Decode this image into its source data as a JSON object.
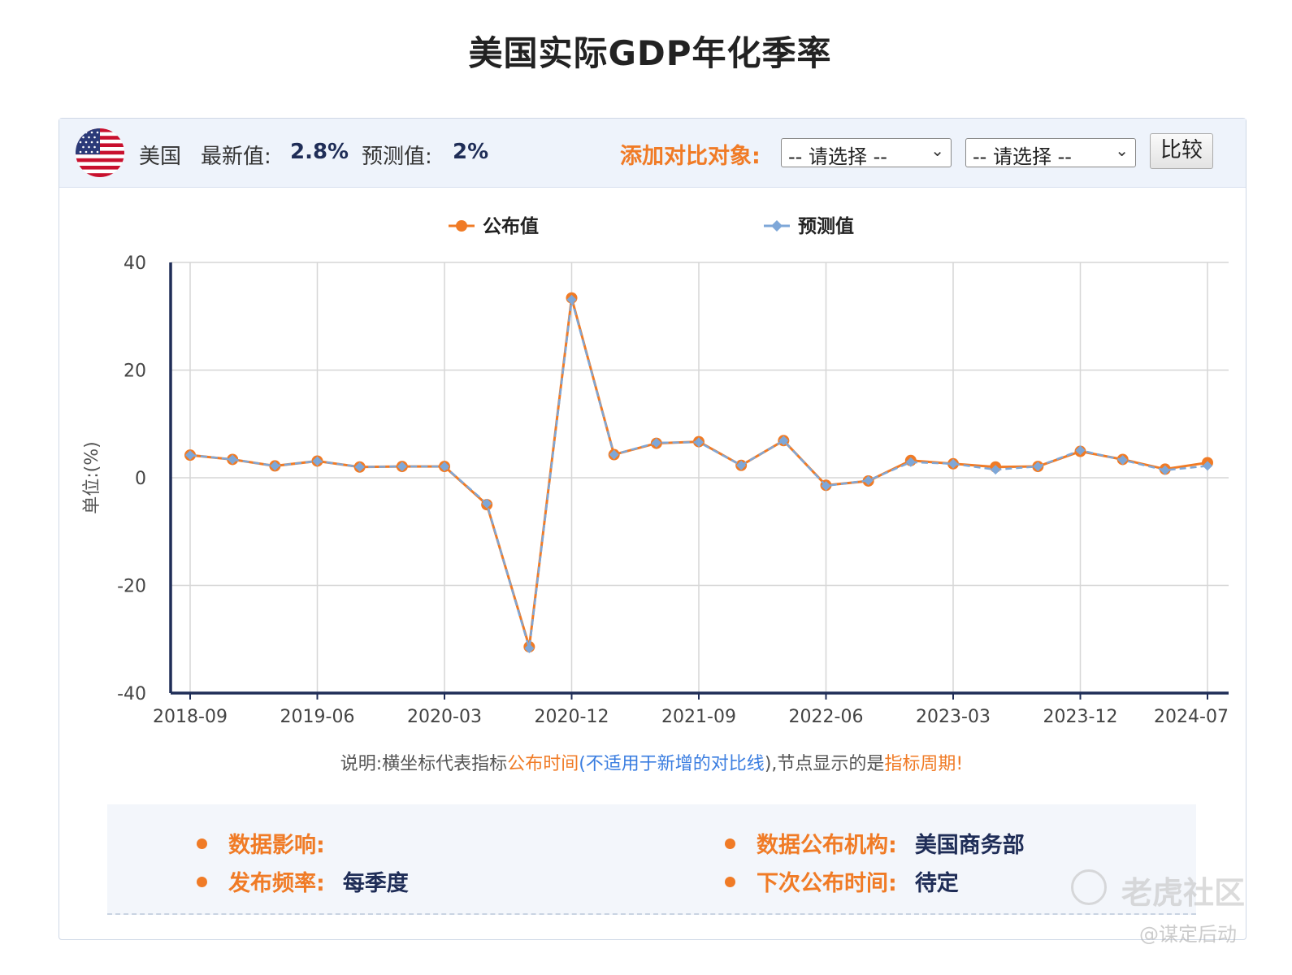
{
  "page": {
    "title": "美国实际GDP年化季率"
  },
  "header": {
    "country": "美国",
    "latest_label": "最新值:",
    "latest_value": "2.8%",
    "forecast_label": "预测值:",
    "forecast_value": "2%",
    "compare_label": "添加对比对象:",
    "select1": "-- 请选择 --",
    "select2": "-- 请选择 --",
    "compare_button": "比较"
  },
  "colors": {
    "published": "#f07b26",
    "forecast": "#7ea7d8",
    "axis": "#1f2d57",
    "grid": "#d6d6d6"
  },
  "chart_data": {
    "type": "line",
    "ylabel": "单位:(%)",
    "ylim": [
      -40,
      40
    ],
    "yticks": [
      40,
      20,
      0,
      -20,
      -40
    ],
    "grid": true,
    "legend_position": "top-center",
    "x_tick_labels": [
      "2018-09",
      "2019-06",
      "2020-03",
      "2020-12",
      "2021-09",
      "2022-06",
      "2023-03",
      "2023-12",
      "2024-07"
    ],
    "series": [
      {
        "name": "公布值",
        "values": [
          4.2,
          3.4,
          2.2,
          3.1,
          2.0,
          2.1,
          2.1,
          -5.0,
          -31.4,
          33.4,
          4.3,
          6.4,
          6.7,
          2.3,
          6.9,
          -1.4,
          -0.6,
          3.2,
          2.6,
          2.0,
          2.1,
          4.9,
          3.4,
          1.6,
          2.8
        ]
      },
      {
        "name": "预测值",
        "values": [
          4.2,
          3.4,
          2.2,
          3.1,
          2.0,
          2.1,
          2.1,
          -4.8,
          -31.7,
          33.1,
          4.3,
          6.5,
          6.6,
          2.3,
          6.9,
          -1.5,
          -0.5,
          2.9,
          2.6,
          1.5,
          2.1,
          5.1,
          3.3,
          1.4,
          2.2
        ]
      }
    ]
  },
  "note": {
    "prefix": "说明:横坐标代表指标",
    "part1": "公布时间",
    "paren_open": "(",
    "part2": "不适用于新增的对比线",
    "paren_close": "),节点显示的是",
    "part3": "指标周期!"
  },
  "info": {
    "impact_label": "数据影响:",
    "impact_value": "",
    "source_label": "数据公布机构:",
    "source_value": "美国商务部",
    "frequency_label": "发布频率:",
    "frequency_value": "每季度",
    "next_label": "下次公布时间:",
    "next_value": "待定"
  },
  "watermark": {
    "brand": "老虎社区",
    "user": "@谋定后动"
  }
}
